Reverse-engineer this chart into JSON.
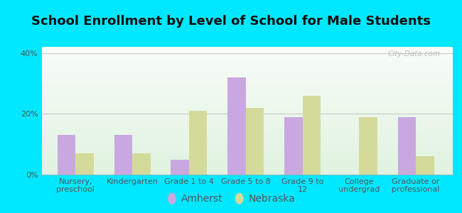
{
  "title": "School Enrollment by Level of School for Male Students",
  "categories": [
    "Nursery,\npreschool",
    "Kindergarten",
    "Grade 1 to 4",
    "Grade 5 to 8",
    "Grade 9 to\n12",
    "College\nundergrad",
    "Graduate or\nprofessional"
  ],
  "amherst": [
    13.0,
    13.0,
    5.0,
    32.0,
    19.0,
    0.0,
    19.0
  ],
  "nebraska": [
    7.0,
    7.0,
    21.0,
    22.0,
    26.0,
    19.0,
    6.0
  ],
  "amherst_color": "#c9a8e0",
  "nebraska_color": "#d4db9a",
  "background_color": "#00e8ff",
  "ylabel_ticks": [
    "0%",
    "20%",
    "40%"
  ],
  "yticks": [
    0,
    20,
    40
  ],
  "ylim": [
    0,
    42
  ],
  "title_fontsize": 13,
  "tick_fontsize": 8,
  "legend_fontsize": 10,
  "watermark_text": "City-Data.com",
  "title_color": "#111111",
  "tick_color": "#555555"
}
